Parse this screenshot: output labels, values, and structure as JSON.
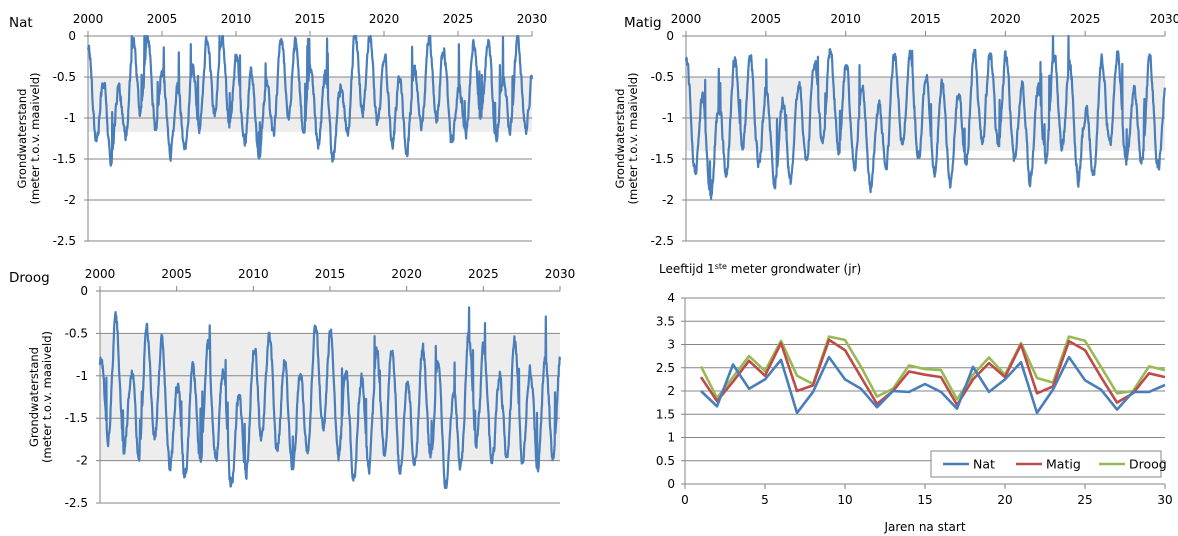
{
  "colors": {
    "nat": "#4a7ebb",
    "matig": "#be4b48",
    "droog": "#98b954",
    "band": "#ededed",
    "grid": "#868686"
  },
  "chart_data": [
    {
      "type": "line",
      "title": "Nat",
      "ylabel": [
        "Grondwaterstand",
        "(meter t.o.v. maaiveld)"
      ],
      "x_ticks": [
        "2000",
        "2005",
        "2010",
        "2015",
        "2020",
        "2025",
        "2030"
      ],
      "xlim": [
        2000,
        2030
      ],
      "y_ticks": [
        "0",
        "-0.5",
        "-1",
        "-1.5",
        "-2",
        "-2.5"
      ],
      "ylim": [
        -2.5,
        0
      ],
      "band": [
        -1.17,
        -0.5
      ],
      "base": -0.72,
      "amp": 0.45,
      "min_level": -1.58,
      "series": [
        {
          "values": [
            -0.37,
            -1.38,
            -1.58,
            -0.3,
            -0.12,
            -1.0,
            -1.53,
            -1.05,
            -0.22,
            -0.15,
            -0.72,
            -1.18,
            -1.5,
            -0.12,
            -0.25,
            -1.0,
            -1.15,
            -1.55,
            -0.05,
            -0.2,
            -0.65,
            -1.3,
            -1.1,
            -0.15,
            -0.4,
            -1.55,
            -0.25,
            -0.22,
            -1.3,
            -0.05,
            -1.2
          ]
        }
      ]
    },
    {
      "type": "line",
      "title": "Matig",
      "ylabel": [
        "Grondwaterstand",
        "(meter t.o.v. maaiveld)"
      ],
      "x_ticks": [
        "2000",
        "2005",
        "2010",
        "2015",
        "2020",
        "2025",
        "2030"
      ],
      "xlim": [
        2000,
        2030
      ],
      "y_ticks": [
        "0",
        "-0.5",
        "-1",
        "-1.5",
        "-2",
        "-2.5"
      ],
      "ylim": [
        -2.5,
        0
      ],
      "band": [
        -1.4,
        -0.5
      ],
      "base": -1.05,
      "amp": 0.55,
      "min_level": -2.0,
      "series": [
        {
          "values": [
            -0.5,
            -1.62,
            -1.9,
            -0.62,
            -0.5,
            -1.35,
            -1.72,
            -1.2,
            -0.6,
            -0.28,
            -0.72,
            -1.3,
            -1.85,
            -0.4,
            -0.42,
            -1.0,
            -1.25,
            -1.62,
            -0.42,
            -0.4,
            -0.45,
            -1.3,
            -1.4,
            -0.45,
            -0.55,
            -1.98,
            -0.6,
            -0.35,
            -1.5,
            -0.45,
            -1.5
          ]
        }
      ]
    },
    {
      "type": "line",
      "title": "Droog",
      "ylabel": [
        "Grondwaterstand",
        "(meter t.o.v. maaiveld)"
      ],
      "x_ticks": [
        "2000",
        "2005",
        "2010",
        "2015",
        "2020",
        "2025",
        "2030"
      ],
      "xlim": [
        2000,
        2030
      ],
      "y_ticks": [
        "0",
        "-0.5",
        "-1",
        "-1.5",
        "-2",
        "-2.5"
      ],
      "ylim": [
        -2.5,
        0
      ],
      "band": [
        -2.0,
        -0.5
      ],
      "base": -1.45,
      "amp": 0.6,
      "min_level": -2.36,
      "series": [
        {
          "values": [
            -1.4,
            -0.12,
            -1.8,
            -0.55,
            -0.9,
            -2.05,
            -1.55,
            -1.02,
            -1.6,
            -2.3,
            -1.0,
            -0.65,
            -1.35,
            -1.8,
            -0.5,
            -0.6,
            -1.7,
            -1.9,
            -1.2,
            -1.0,
            -2.0,
            -1.0,
            -1.5,
            -2.35,
            -0.7,
            -1.0,
            -1.8,
            -0.85,
            -1.6,
            -1.3,
            -1.2
          ]
        }
      ]
    },
    {
      "type": "line",
      "title": "Leeftijd 1ste meter grondwater (jr)",
      "xlabel": "Jaren na start",
      "x_ticks": [
        "0",
        "5",
        "10",
        "15",
        "20",
        "25",
        "30"
      ],
      "xlim": [
        0,
        30
      ],
      "y_ticks": [
        "0",
        "0.5",
        "1",
        "1.5",
        "2",
        "2.5",
        "3",
        "3.5",
        "4"
      ],
      "ylim": [
        0,
        4
      ],
      "legend": "bottom-right",
      "x": [
        1,
        2,
        3,
        4,
        5,
        6,
        7,
        8,
        9,
        10,
        11,
        12,
        13,
        14,
        15,
        16,
        17,
        18,
        19,
        20,
        21,
        22,
        23,
        24,
        25,
        26,
        27,
        28,
        29,
        30
      ],
      "series": [
        {
          "name": "Nat",
          "values": [
            2.0,
            1.67,
            2.57,
            2.05,
            2.25,
            2.67,
            1.53,
            1.98,
            2.73,
            2.25,
            2.05,
            1.65,
            2.0,
            1.98,
            2.15,
            1.98,
            1.62,
            2.52,
            1.98,
            2.25,
            2.62,
            1.53,
            2.03,
            2.73,
            2.23,
            2.03,
            1.6,
            1.98,
            1.98,
            2.13
          ]
        },
        {
          "name": "Matig",
          "values": [
            2.3,
            1.78,
            2.2,
            2.65,
            2.33,
            3.03,
            2.0,
            2.12,
            3.1,
            2.88,
            2.3,
            1.72,
            2.0,
            2.42,
            2.35,
            2.3,
            1.7,
            2.25,
            2.6,
            2.3,
            3.0,
            1.95,
            2.1,
            3.07,
            2.88,
            2.3,
            1.75,
            1.95,
            2.38,
            2.3
          ]
        },
        {
          "name": "Droog",
          "values": [
            2.53,
            1.85,
            2.3,
            2.75,
            2.43,
            3.08,
            2.33,
            2.15,
            3.17,
            3.1,
            2.52,
            1.88,
            2.05,
            2.55,
            2.47,
            2.45,
            1.82,
            2.35,
            2.72,
            2.35,
            3.03,
            2.28,
            2.18,
            3.17,
            3.08,
            2.52,
            1.95,
            2.0,
            2.53,
            2.45
          ]
        }
      ]
    }
  ]
}
